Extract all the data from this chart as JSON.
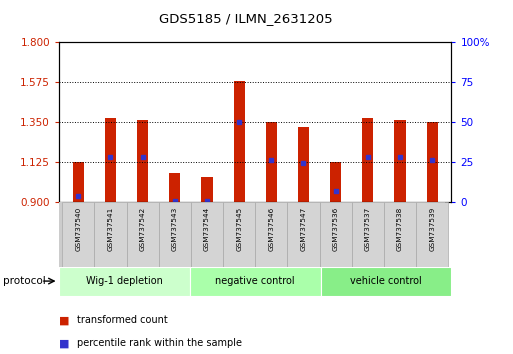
{
  "title": "GDS5185 / ILMN_2631205",
  "samples": [
    "GSM737540",
    "GSM737541",
    "GSM737542",
    "GSM737543",
    "GSM737544",
    "GSM737545",
    "GSM737546",
    "GSM737547",
    "GSM737536",
    "GSM737537",
    "GSM737538",
    "GSM737539"
  ],
  "bar_tops": [
    1.125,
    1.375,
    1.36,
    1.06,
    1.04,
    1.585,
    1.352,
    1.32,
    1.125,
    1.375,
    1.36,
    1.352
  ],
  "bar_bottoms": [
    0.9,
    0.9,
    0.9,
    0.9,
    0.9,
    0.9,
    0.9,
    0.9,
    0.9,
    0.9,
    0.9,
    0.9
  ],
  "blue_markers": [
    0.93,
    1.155,
    1.155,
    0.905,
    0.902,
    1.353,
    1.135,
    1.12,
    0.96,
    1.155,
    1.155,
    1.135
  ],
  "bar_color": "#cc2200",
  "blue_color": "#3333cc",
  "ylim_left": [
    0.9,
    1.8
  ],
  "ylim_right": [
    0,
    100
  ],
  "left_ticks": [
    0.9,
    1.125,
    1.35,
    1.575,
    1.8
  ],
  "right_ticks": [
    0,
    25,
    50,
    75,
    100
  ],
  "groups": [
    {
      "label": "Wig-1 depletion",
      "samples": 4,
      "color": "#ccffcc"
    },
    {
      "label": "negative control",
      "samples": 4,
      "color": "#aaffaa"
    },
    {
      "label": "vehicle control",
      "samples": 4,
      "color": "#88ee88"
    }
  ],
  "legend_items": [
    {
      "label": "transformed count",
      "color": "#cc2200"
    },
    {
      "label": "percentile rank within the sample",
      "color": "#3333cc"
    }
  ],
  "protocol_label": "protocol",
  "bar_width": 0.35,
  "background_color": "#ffffff"
}
